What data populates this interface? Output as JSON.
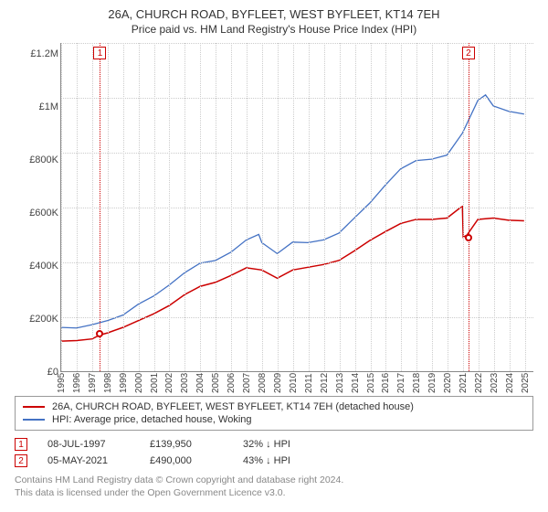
{
  "title": "26A, CHURCH ROAD, BYFLEET, WEST BYFLEET, KT14 7EH",
  "subtitle": "Price paid vs. HM Land Registry's House Price Index (HPI)",
  "chart": {
    "type": "line",
    "x_years": [
      1995,
      1996,
      1997,
      1998,
      1999,
      2000,
      2001,
      2002,
      2003,
      2004,
      2005,
      2006,
      2007,
      2008,
      2009,
      2010,
      2011,
      2012,
      2013,
      2014,
      2015,
      2016,
      2017,
      2018,
      2019,
      2020,
      2021,
      2022,
      2023,
      2024,
      2025
    ],
    "xlim": [
      1995,
      2025.6
    ],
    "ylim": [
      0,
      1200000
    ],
    "ytick_step": 200000,
    "ytick_labels": [
      "£1.2M",
      "£1M",
      "£800K",
      "£600K",
      "£400K",
      "£200K",
      "£0"
    ],
    "grid_color": "#cccccc",
    "background_color": "#ffffff",
    "axis_color": "#888888",
    "series": {
      "price_paid": {
        "color": "#cc0000",
        "width": 1.5,
        "points": [
          [
            1995,
            110000
          ],
          [
            1996,
            112000
          ],
          [
            1997,
            118000
          ],
          [
            1997.5,
            132000
          ],
          [
            1998,
            140000
          ],
          [
            1999,
            160000
          ],
          [
            2000,
            185000
          ],
          [
            2001,
            210000
          ],
          [
            2002,
            240000
          ],
          [
            2003,
            280000
          ],
          [
            2004,
            310000
          ],
          [
            2005,
            325000
          ],
          [
            2006,
            350000
          ],
          [
            2007,
            378000
          ],
          [
            2008,
            370000
          ],
          [
            2009,
            340000
          ],
          [
            2010,
            370000
          ],
          [
            2011,
            380000
          ],
          [
            2012,
            390000
          ],
          [
            2013,
            405000
          ],
          [
            2014,
            440000
          ],
          [
            2015,
            478000
          ],
          [
            2016,
            510000
          ],
          [
            2017,
            540000
          ],
          [
            2018,
            555000
          ],
          [
            2019,
            555000
          ],
          [
            2020,
            560000
          ],
          [
            2020.8,
            595000
          ],
          [
            2021,
            602000
          ],
          [
            2021.05,
            490000
          ],
          [
            2021.3,
            498000
          ],
          [
            2022,
            555000
          ],
          [
            2023,
            560000
          ],
          [
            2024,
            552000
          ],
          [
            2025,
            550000
          ]
        ]
      },
      "hpi": {
        "color": "#4472c4",
        "width": 1.3,
        "points": [
          [
            1995,
            160000
          ],
          [
            1996,
            158000
          ],
          [
            1997,
            170000
          ],
          [
            1998,
            185000
          ],
          [
            1999,
            205000
          ],
          [
            2000,
            245000
          ],
          [
            2001,
            275000
          ],
          [
            2002,
            315000
          ],
          [
            2003,
            360000
          ],
          [
            2004,
            395000
          ],
          [
            2005,
            405000
          ],
          [
            2006,
            435000
          ],
          [
            2007,
            480000
          ],
          [
            2007.8,
            500000
          ],
          [
            2008,
            470000
          ],
          [
            2009,
            430000
          ],
          [
            2010,
            472000
          ],
          [
            2011,
            470000
          ],
          [
            2012,
            480000
          ],
          [
            2013,
            505000
          ],
          [
            2014,
            560000
          ],
          [
            2015,
            615000
          ],
          [
            2016,
            680000
          ],
          [
            2017,
            740000
          ],
          [
            2018,
            770000
          ],
          [
            2019,
            775000
          ],
          [
            2020,
            790000
          ],
          [
            2021,
            870000
          ],
          [
            2022,
            990000
          ],
          [
            2022.5,
            1010000
          ],
          [
            2023,
            970000
          ],
          [
            2024,
            950000
          ],
          [
            2025,
            940000
          ]
        ]
      }
    },
    "markers": [
      {
        "n": "1",
        "year": 1997.51,
        "color": "#cc0000"
      },
      {
        "n": "2",
        "year": 2021.34,
        "color": "#cc0000"
      }
    ],
    "sale_points": [
      {
        "year": 1997.51,
        "value": 139950,
        "color": "#cc0000"
      },
      {
        "year": 2021.34,
        "value": 490000,
        "color": "#cc0000"
      }
    ]
  },
  "legend": {
    "items": [
      {
        "color": "#cc0000",
        "label": "26A, CHURCH ROAD, BYFLEET, WEST BYFLEET, KT14 7EH (detached house)"
      },
      {
        "color": "#4472c4",
        "label": "HPI: Average price, detached house, Woking"
      }
    ]
  },
  "datarows": [
    {
      "n": "1",
      "color": "#cc0000",
      "date": "08-JUL-1997",
      "price": "£139,950",
      "delta": "32% ↓ HPI"
    },
    {
      "n": "2",
      "color": "#cc0000",
      "date": "05-MAY-2021",
      "price": "£490,000",
      "delta": "43% ↓ HPI"
    }
  ],
  "license_l1": "Contains HM Land Registry data © Crown copyright and database right 2024.",
  "license_l2": "This data is licensed under the Open Government Licence v3.0."
}
